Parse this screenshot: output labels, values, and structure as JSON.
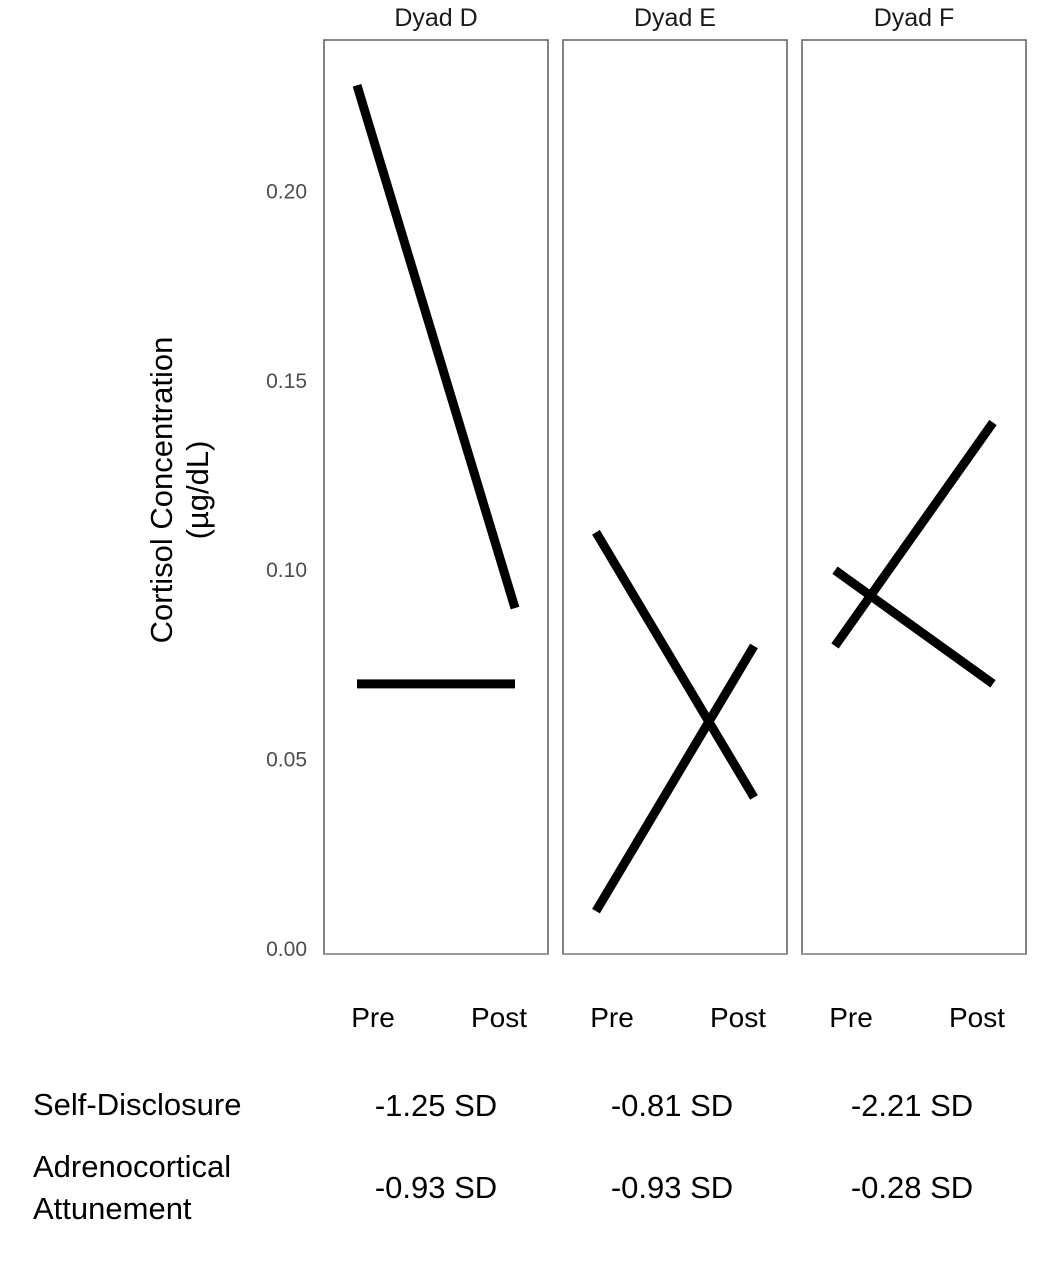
{
  "chart_data": {
    "type": "line",
    "ylabel": "Cortisol Concentration",
    "ylabel_unit": "(µg/dL)",
    "ylim": [
      0,
      0.24
    ],
    "yticks": [
      "0.00",
      "0.05",
      "0.10",
      "0.15",
      "0.20"
    ],
    "categories": [
      "Pre",
      "Post"
    ],
    "grid": false,
    "panels": [
      {
        "title": "Dyad D",
        "series": [
          {
            "values": [
              0.228,
              0.09
            ]
          },
          {
            "values": [
              0.07,
              0.07
            ]
          }
        ]
      },
      {
        "title": "Dyad E",
        "series": [
          {
            "values": [
              0.11,
              0.04
            ]
          },
          {
            "values": [
              0.01,
              0.08
            ]
          }
        ]
      },
      {
        "title": "Dyad F",
        "series": [
          {
            "values": [
              0.08,
              0.139
            ]
          },
          {
            "values": [
              0.1,
              0.07
            ]
          }
        ]
      }
    ]
  },
  "table": {
    "rows": [
      {
        "label": [
          "Self-Disclosure"
        ],
        "values": [
          "-1.25 SD",
          "-0.81 SD",
          "-2.21 SD"
        ]
      },
      {
        "label": [
          "Adrenocortical",
          "Attunement"
        ],
        "values": [
          "-0.93 SD",
          "-0.93 SD",
          "-0.28 SD"
        ]
      }
    ]
  }
}
